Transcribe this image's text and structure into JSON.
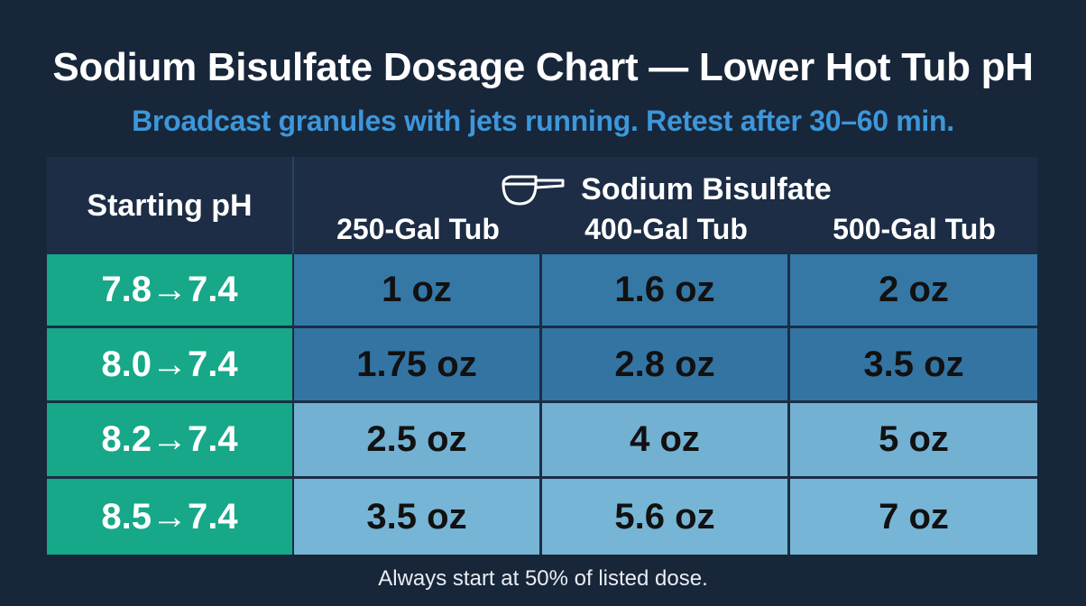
{
  "title": "Sodium Bisulfate Dosage Chart — Lower Hot Tub pH",
  "subtitle": "Broadcast granules with jets running. Retest after 30–60 min.",
  "table": {
    "row_header": "Starting pH",
    "group_header": "Sodium Bisulfate",
    "group_icon": "measuring-scoop-icon",
    "columns": [
      "250-Gal Tub",
      "400-Gal Tub",
      "500-Gal Tub"
    ],
    "rows": [
      {
        "ph": "7.8→7.4",
        "doses": [
          "1 oz",
          "1.6 oz",
          "2 oz"
        ]
      },
      {
        "ph": "8.0→7.4",
        "doses": [
          "1.75 oz",
          "2.8 oz",
          "3.5 oz"
        ]
      },
      {
        "ph": "8.2→7.4",
        "doses": [
          "2.5 oz",
          "4 oz",
          "5 oz"
        ]
      },
      {
        "ph": "8.5→7.4",
        "doses": [
          "3.5 oz",
          "5.6 oz",
          "7 oz"
        ]
      }
    ]
  },
  "footnote": "Always start at 50% of listed dose.",
  "colors": {
    "background": "#18263a",
    "header": "#1c2d45",
    "ph_column": "#16a888",
    "dose_dark": "#3578a6",
    "dose_light": "#72b1d2",
    "subtitle": "#3d97d9"
  }
}
